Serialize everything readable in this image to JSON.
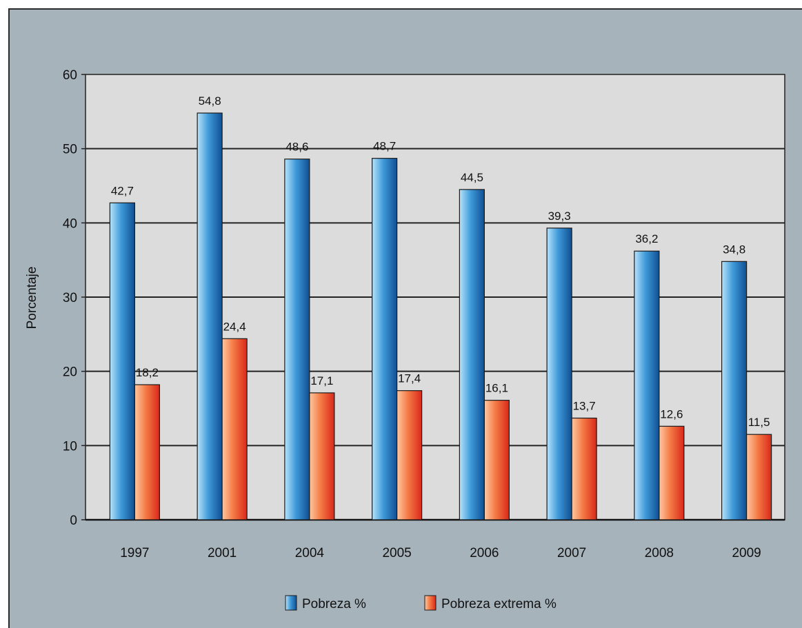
{
  "chart_data": {
    "type": "bar",
    "title": "",
    "xlabel": "",
    "ylabel": "Porcentaje",
    "ylim": [
      0,
      60
    ],
    "yticks": [
      0,
      10,
      20,
      30,
      40,
      50,
      60
    ],
    "grid": true,
    "legend_position": "bottom",
    "categories": [
      "1997",
      "2001",
      "2004",
      "2005",
      "2006",
      "2007",
      "2008",
      "2009"
    ],
    "series": [
      {
        "name": "Pobreza %",
        "values": [
          42.7,
          54.8,
          48.6,
          48.7,
          44.5,
          39.3,
          36.2,
          34.8
        ],
        "labels": [
          "42,7",
          "54,8",
          "48,6",
          "48,7",
          "44,5",
          "39,3",
          "36,2",
          "34,8"
        ],
        "color_light": "#8fd0f5",
        "color_dark": "#1561a8"
      },
      {
        "name": "Pobreza extrema %",
        "values": [
          18.2,
          24.4,
          17.1,
          17.4,
          16.1,
          13.7,
          12.6,
          11.5
        ],
        "labels": [
          "18,2",
          "24,4",
          "17,1",
          "17,4",
          "16,1",
          "13,7",
          "12,6",
          "11,5"
        ],
        "color_light": "#ffb080",
        "color_dark": "#e8341c"
      }
    ],
    "plot_background": "#dcdcdc",
    "figure_background": "#a7b3bb"
  }
}
